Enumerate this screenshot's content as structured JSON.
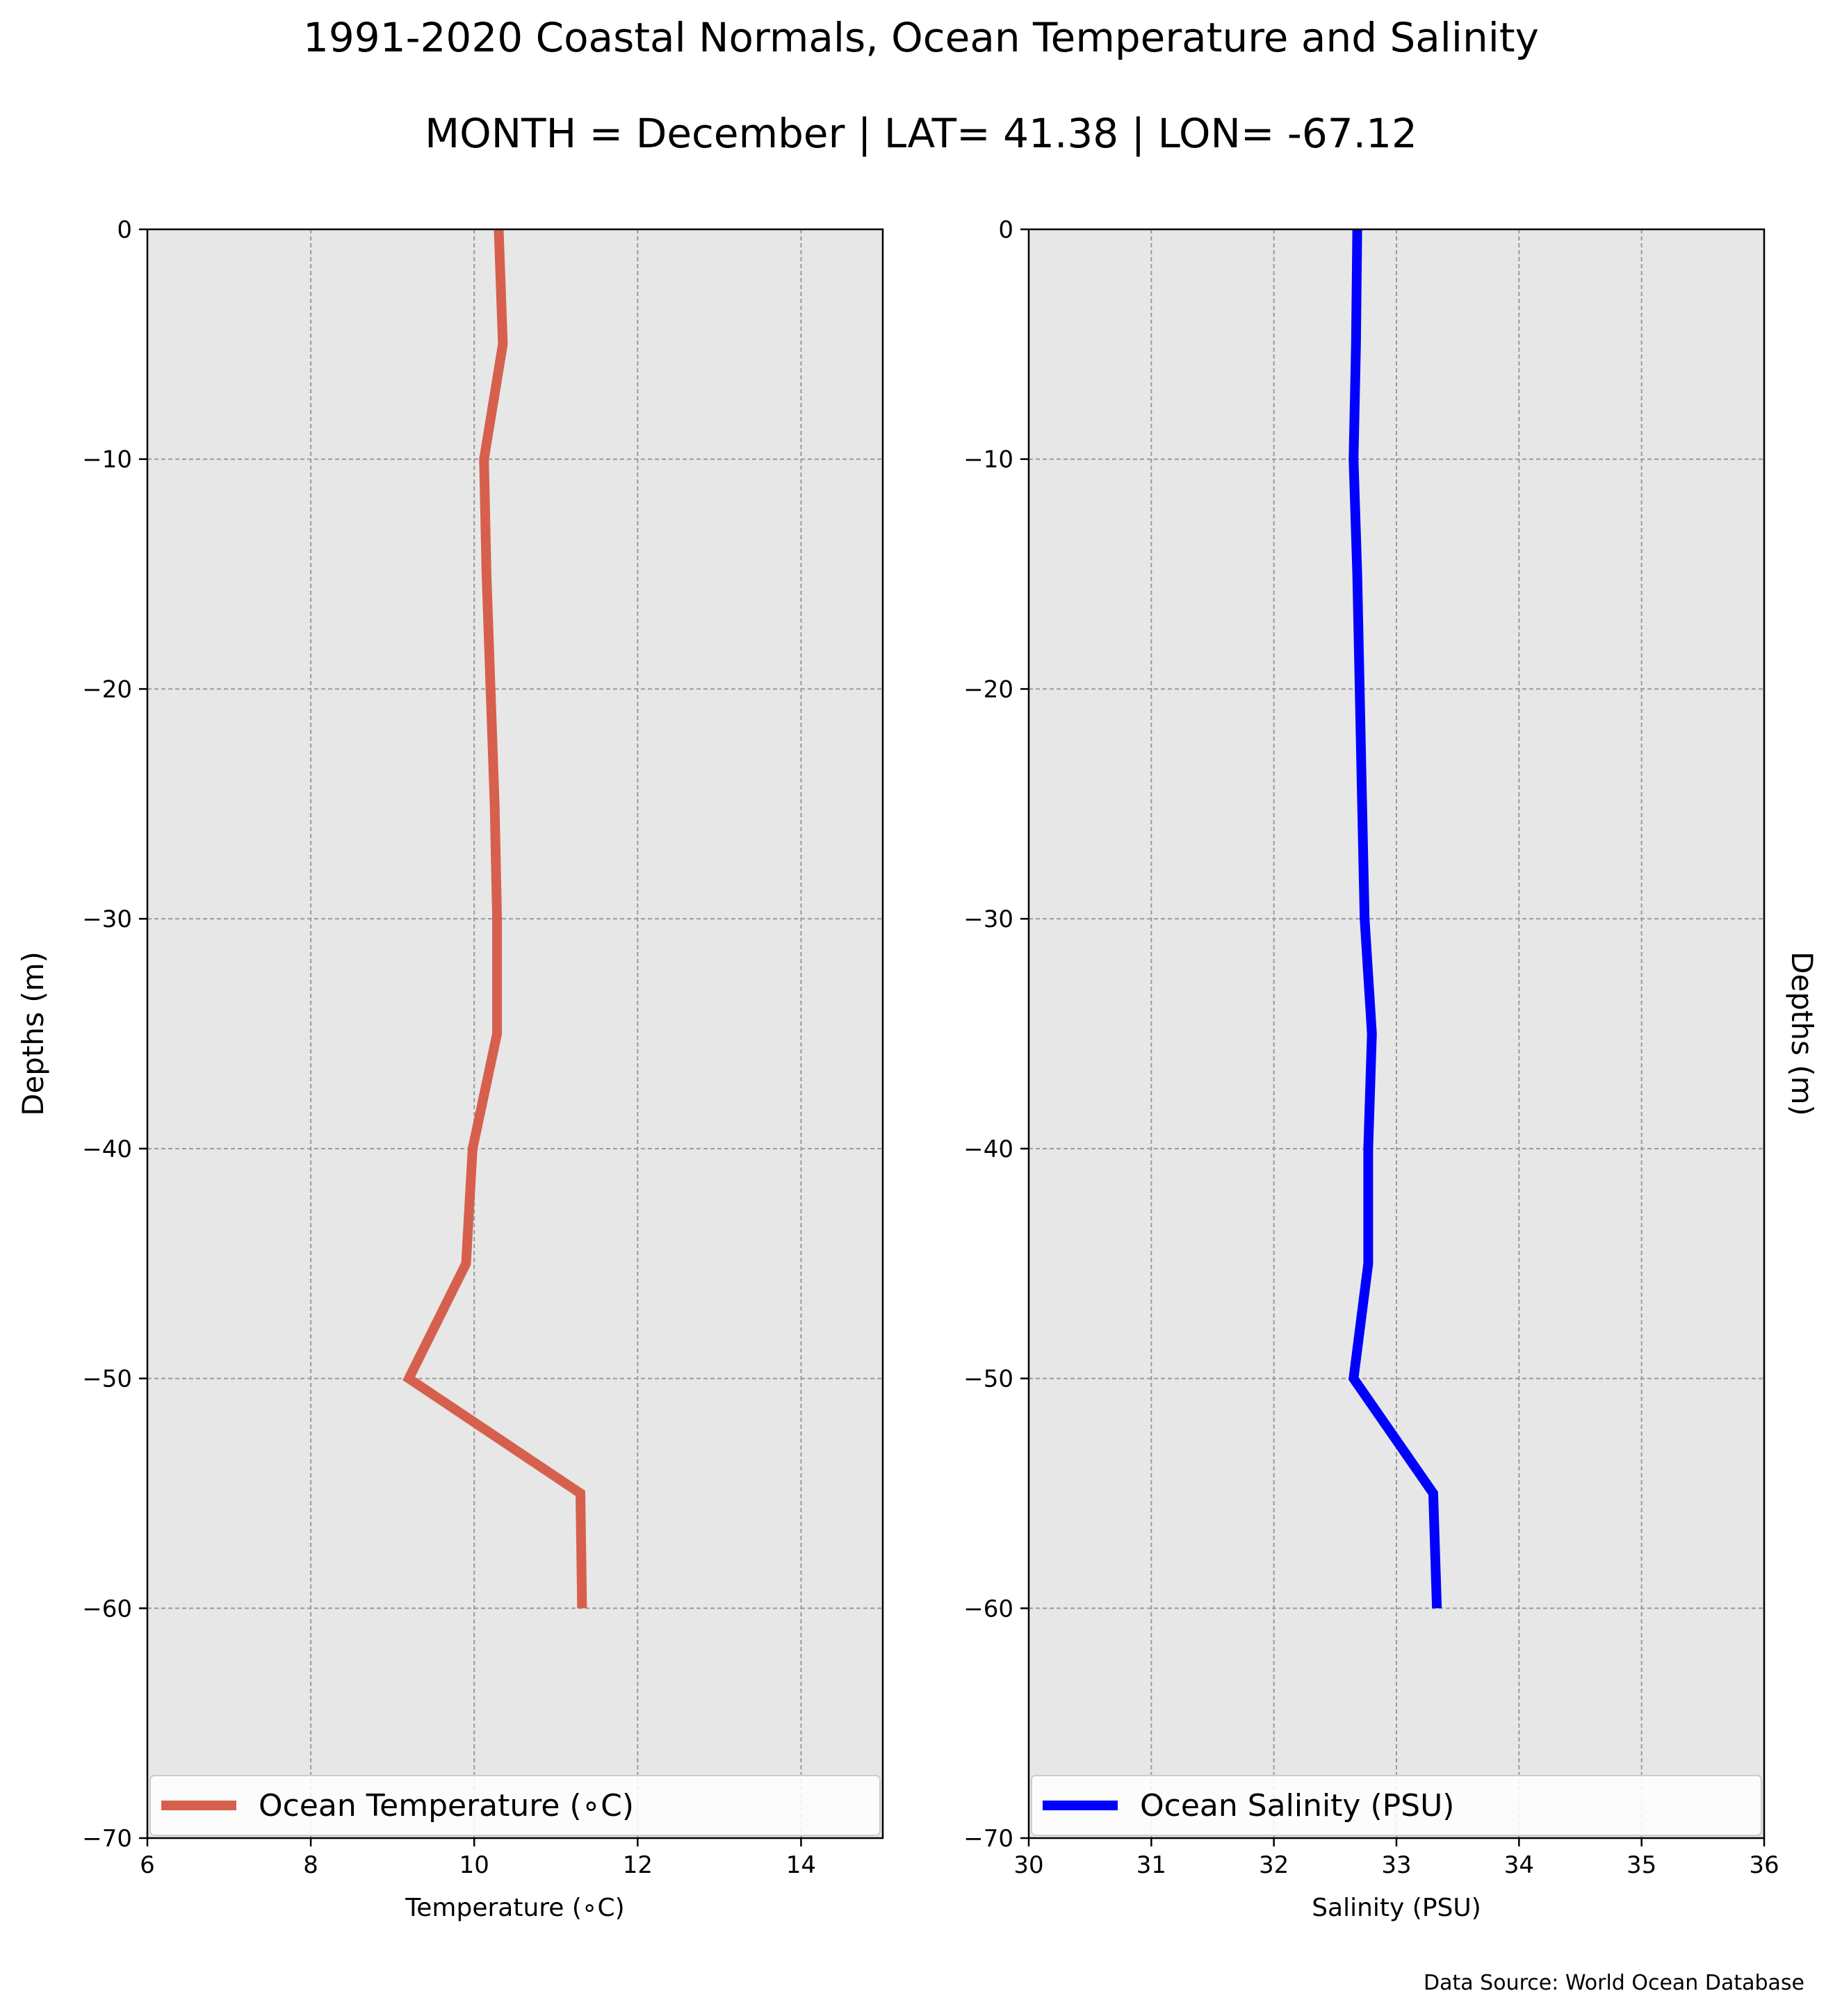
{
  "figure": {
    "title": "1991-2020 Coastal Normals, Ocean Temperature and Salinity",
    "subtitle": "MONTH = December | LAT= 41.38 | LON= -67.12",
    "source": "Data Source: World Ocean Database"
  },
  "chart_data": [
    {
      "type": "line",
      "xlabel": "Temperature (∘C)",
      "ylabel": "Depths (m)",
      "xlim": [
        6,
        15
      ],
      "ylim": [
        -70,
        0
      ],
      "xticks": [
        6,
        8,
        10,
        12,
        14
      ],
      "yticks": [
        0,
        -10,
        -20,
        -30,
        -40,
        -50,
        -60,
        -70
      ],
      "grid": true,
      "legend_position": "lower-center",
      "series": [
        {
          "name": "Ocean Temperature (∘C)",
          "color": "#d6604d",
          "x": [
            10.3,
            10.35,
            10.12,
            10.15,
            10.2,
            10.25,
            10.28,
            10.28,
            9.98,
            9.9,
            9.2,
            11.3,
            11.32
          ],
          "y": [
            0,
            -5,
            -10,
            -15,
            -20,
            -25,
            -30,
            -35,
            -40,
            -45,
            -50,
            -55,
            -60
          ]
        }
      ]
    },
    {
      "type": "line",
      "xlabel": "Salinity (PSU)",
      "ylabel": "Depths (m)",
      "xlim": [
        30,
        36
      ],
      "ylim": [
        -70,
        0
      ],
      "xticks": [
        30,
        31,
        32,
        33,
        34,
        35,
        36
      ],
      "yticks": [
        0,
        -10,
        -20,
        -30,
        -40,
        -50,
        -60,
        -70
      ],
      "grid": true,
      "legend_position": "lower-center",
      "series": [
        {
          "name": "Ocean Salinity (PSU)",
          "color": "#0000ff",
          "x": [
            32.68,
            32.67,
            32.65,
            32.68,
            32.7,
            32.72,
            32.74,
            32.8,
            32.77,
            32.77,
            32.65,
            33.3,
            33.33
          ],
          "y": [
            0,
            -5,
            -10,
            -15,
            -20,
            -25,
            -30,
            -35,
            -40,
            -45,
            -50,
            -55,
            -60
          ]
        }
      ]
    }
  ]
}
